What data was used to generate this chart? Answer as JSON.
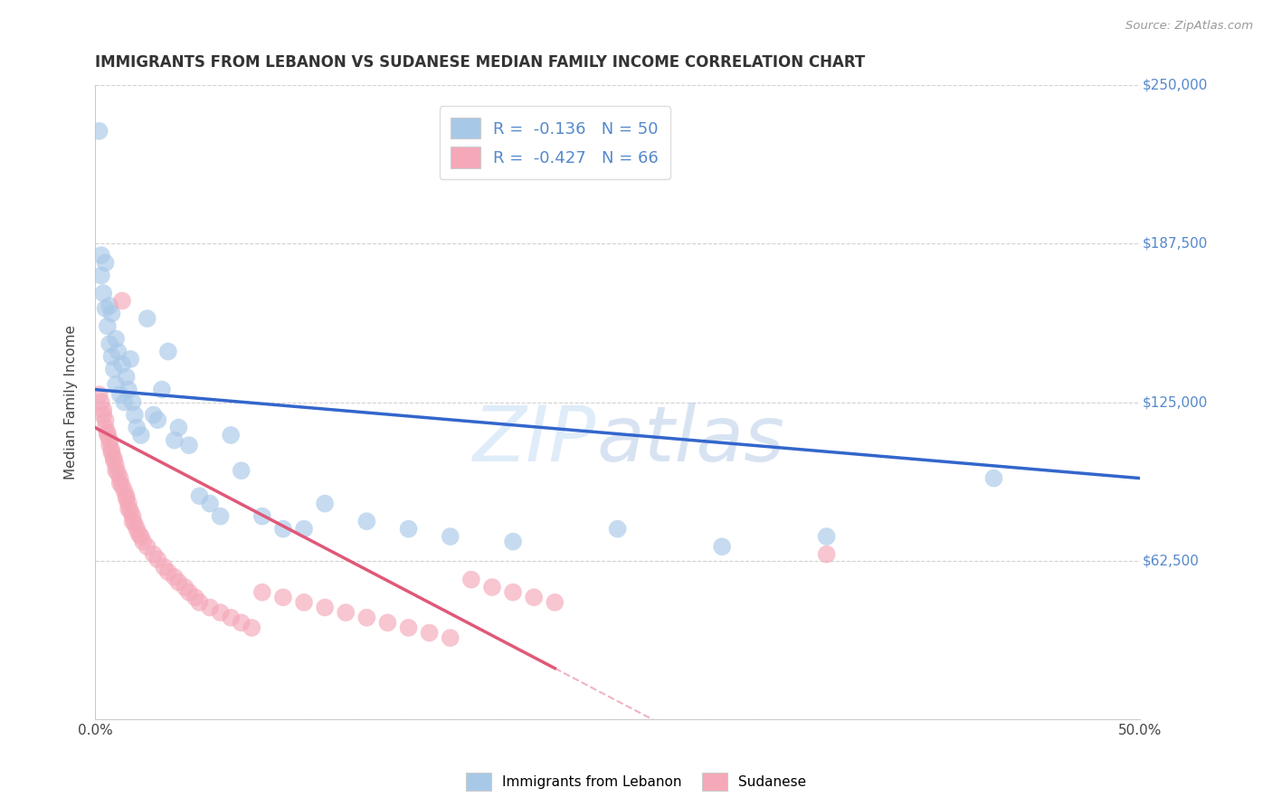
{
  "title": "IMMIGRANTS FROM LEBANON VS SUDANESE MEDIAN FAMILY INCOME CORRELATION CHART",
  "source": "Source: ZipAtlas.com",
  "ylabel": "Median Family Income",
  "xlim": [
    0.0,
    0.5
  ],
  "ylim": [
    0,
    250000
  ],
  "yticks": [
    0,
    62500,
    125000,
    187500,
    250000
  ],
  "ytick_labels_right": [
    "$250,000",
    "$187,500",
    "$125,000",
    "$62,500",
    ""
  ],
  "xticks": [
    0.0,
    0.1,
    0.2,
    0.3,
    0.4,
    0.5
  ],
  "xtick_labels": [
    "0.0%",
    "",
    "",
    "",
    "",
    "50.0%"
  ],
  "lebanon_color": "#a8c8e8",
  "sudan_color": "#f4a8b8",
  "lebanon_line_color": "#3366cc",
  "sudan_line_color": "#e05878",
  "legend_label_lebanon": "Immigrants from Lebanon",
  "legend_label_sudan": "Sudanese",
  "lebanon_R": -0.136,
  "lebanon_N": 50,
  "sudan_R": -0.427,
  "sudan_N": 66,
  "watermark_zip": "ZIP",
  "watermark_atlas": "atlas",
  "background_color": "#ffffff",
  "grid_color": "#cccccc",
  "tick_color": "#5588cc",
  "lebanon_x": [
    0.002,
    0.003,
    0.003,
    0.004,
    0.005,
    0.005,
    0.006,
    0.007,
    0.007,
    0.008,
    0.008,
    0.009,
    0.01,
    0.01,
    0.011,
    0.012,
    0.013,
    0.014,
    0.015,
    0.016,
    0.017,
    0.018,
    0.019,
    0.02,
    0.022,
    0.025,
    0.028,
    0.03,
    0.032,
    0.035,
    0.038,
    0.04,
    0.045,
    0.05,
    0.055,
    0.06,
    0.065,
    0.07,
    0.08,
    0.09,
    0.1,
    0.11,
    0.13,
    0.15,
    0.17,
    0.2,
    0.25,
    0.3,
    0.35,
    0.43
  ],
  "lebanon_y": [
    232000,
    183000,
    175000,
    168000,
    180000,
    162000,
    155000,
    163000,
    148000,
    160000,
    143000,
    138000,
    150000,
    132000,
    145000,
    128000,
    140000,
    125000,
    135000,
    130000,
    142000,
    125000,
    120000,
    115000,
    112000,
    158000,
    120000,
    118000,
    130000,
    145000,
    110000,
    115000,
    108000,
    88000,
    85000,
    80000,
    112000,
    98000,
    80000,
    75000,
    75000,
    85000,
    78000,
    75000,
    72000,
    70000,
    75000,
    68000,
    72000,
    95000
  ],
  "sudan_x": [
    0.002,
    0.003,
    0.004,
    0.004,
    0.005,
    0.005,
    0.006,
    0.006,
    0.007,
    0.007,
    0.008,
    0.008,
    0.009,
    0.009,
    0.01,
    0.01,
    0.011,
    0.012,
    0.012,
    0.013,
    0.013,
    0.014,
    0.015,
    0.015,
    0.016,
    0.016,
    0.017,
    0.018,
    0.018,
    0.019,
    0.02,
    0.021,
    0.022,
    0.023,
    0.025,
    0.028,
    0.03,
    0.033,
    0.035,
    0.038,
    0.04,
    0.043,
    0.045,
    0.048,
    0.05,
    0.055,
    0.06,
    0.065,
    0.07,
    0.075,
    0.08,
    0.09,
    0.1,
    0.11,
    0.12,
    0.13,
    0.14,
    0.15,
    0.16,
    0.17,
    0.18,
    0.19,
    0.2,
    0.21,
    0.22,
    0.35
  ],
  "sudan_y": [
    128000,
    125000,
    122000,
    120000,
    118000,
    115000,
    113000,
    112000,
    110000,
    108000,
    106000,
    105000,
    103000,
    102000,
    100000,
    98000,
    97000,
    95000,
    93000,
    92000,
    165000,
    90000,
    88000,
    87000,
    85000,
    83000,
    82000,
    80000,
    78000,
    77000,
    75000,
    73000,
    72000,
    70000,
    68000,
    65000,
    63000,
    60000,
    58000,
    56000,
    54000,
    52000,
    50000,
    48000,
    46000,
    44000,
    42000,
    40000,
    38000,
    36000,
    50000,
    48000,
    46000,
    44000,
    42000,
    40000,
    38000,
    36000,
    34000,
    32000,
    55000,
    52000,
    50000,
    48000,
    46000,
    65000
  ]
}
